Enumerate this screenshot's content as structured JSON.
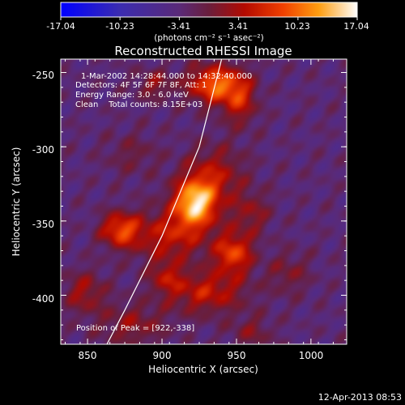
{
  "colorbar": {
    "ticks": [
      "-17.04",
      "-10.23",
      "-3.41",
      "3.41",
      "10.23",
      "17.04"
    ],
    "tick_values": [
      -17.04,
      -10.23,
      -3.41,
      3.41,
      10.23,
      17.04
    ],
    "unit": "(photons cm⁻² s⁻¹ asec⁻²)"
  },
  "chart_data": {
    "type": "heatmap",
    "title": "Reconstructed RHESSI Image",
    "xlabel": "Heliocentric X (arcsec)",
    "ylabel": "Heliocentric Y (arcsec)",
    "xlim": [
      832,
      1024
    ],
    "ylim": [
      -433,
      -241
    ],
    "x_ticks": [
      "850",
      "900",
      "950",
      "1000"
    ],
    "x_tick_values": [
      850,
      900,
      950,
      1000
    ],
    "y_ticks": [
      "-250",
      "-300",
      "-350",
      "-400"
    ],
    "y_tick_values": [
      -250,
      -300,
      -350,
      -400
    ],
    "value_range": [
      -17.04,
      17.04
    ],
    "annotations": {
      "time": "1-Mar-2002 14:28:44.000 to 14:32:40.000",
      "detectors": "Detectors: 4F 5F 6F 7F 8F, Att: 1",
      "energy": "Energy Range: 3.0 - 6.0 keV",
      "clean": "Clean    Total counts: 8.15E+03",
      "peak": "Position of Peak = [922,-338]"
    },
    "peak": [
      922,
      -338
    ],
    "sources": [
      {
        "x": 922,
        "y": -338,
        "amp": 17.0,
        "sx": 10,
        "sy": 11
      },
      {
        "x": 935,
        "y": -320,
        "amp": 7,
        "sx": 14,
        "sy": 14
      },
      {
        "x": 905,
        "y": -360,
        "amp": 8,
        "sx": 18,
        "sy": 12
      },
      {
        "x": 948,
        "y": -372,
        "amp": 11,
        "sx": 9,
        "sy": 10
      },
      {
        "x": 930,
        "y": -398,
        "amp": 8,
        "sx": 18,
        "sy": 10
      },
      {
        "x": 903,
        "y": -388,
        "amp": 6,
        "sx": 8,
        "sy": 8
      },
      {
        "x": 872,
        "y": -356,
        "amp": 11,
        "sx": 9,
        "sy": 8
      },
      {
        "x": 848,
        "y": -398,
        "amp": 6,
        "sx": 10,
        "sy": 10
      },
      {
        "x": 935,
        "y": -258,
        "amp": 13,
        "sx": 12,
        "sy": 9
      },
      {
        "x": 952,
        "y": -268,
        "amp": 8,
        "sx": 8,
        "sy": 12
      },
      {
        "x": 895,
        "y": -258,
        "amp": 5,
        "sx": 9,
        "sy": 7
      },
      {
        "x": 880,
        "y": -305,
        "amp": 3,
        "sx": 12,
        "sy": 10
      },
      {
        "x": 960,
        "y": -345,
        "amp": 5,
        "sx": 9,
        "sy": 10
      },
      {
        "x": 880,
        "y": -420,
        "amp": 5,
        "sx": 16,
        "sy": 10
      },
      {
        "x": 960,
        "y": -425,
        "amp": 4,
        "sx": 10,
        "sy": 8
      },
      {
        "x": 985,
        "y": -385,
        "amp": 4,
        "sx": 10,
        "sy": 10
      }
    ],
    "limb": [
      [
        863,
        -433
      ],
      [
        875,
        -410
      ],
      [
        900,
        -360
      ],
      [
        925,
        -300
      ],
      [
        940,
        -241
      ]
    ]
  },
  "footer": {
    "date": "12-Apr-2013 08:53"
  }
}
